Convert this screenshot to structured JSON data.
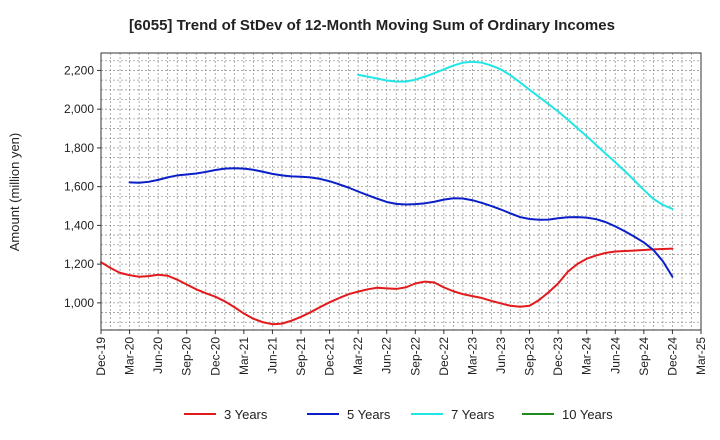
{
  "chart_data": {
    "type": "line",
    "title": "[6055]  Trend of StDev of 12-Month Moving Sum of Ordinary Incomes",
    "xlabel": "",
    "ylabel": "Amount (million yen)",
    "ylim": [
      860,
      2290
    ],
    "y_ticks": [
      1000,
      1200,
      1400,
      1600,
      1800,
      2000,
      2200
    ],
    "y_tick_labels": [
      "1,000",
      "1,200",
      "1,400",
      "1,600",
      "1,800",
      "2,000",
      "2,200"
    ],
    "x_tick_labels": [
      "Dec-19",
      "Mar-20",
      "Jun-20",
      "Sep-20",
      "Dec-20",
      "Mar-21",
      "Jun-21",
      "Sep-21",
      "Dec-21",
      "Mar-22",
      "Jun-22",
      "Sep-22",
      "Dec-22",
      "Mar-23",
      "Jun-23",
      "Sep-23",
      "Dec-23",
      "Mar-24",
      "Jun-24",
      "Sep-24",
      "Dec-24",
      "Mar-25"
    ],
    "grid": true,
    "legend_position": "bottom",
    "series": [
      {
        "name": "3 Years",
        "color": "#e31a1c",
        "points": [
          [
            "Dec-19",
            1210
          ],
          [
            "Jan-20",
            1180
          ],
          [
            "Feb-20",
            1155
          ],
          [
            "Mar-20",
            1143
          ],
          [
            "Apr-20",
            1135
          ],
          [
            "May-20",
            1138
          ],
          [
            "Jun-20",
            1145
          ],
          [
            "Jul-20",
            1140
          ],
          [
            "Aug-20",
            1120
          ],
          [
            "Sep-20",
            1095
          ],
          [
            "Oct-20",
            1070
          ],
          [
            "Nov-20",
            1050
          ],
          [
            "Dec-20",
            1032
          ],
          [
            "Jan-21",
            1008
          ],
          [
            "Feb-21",
            978
          ],
          [
            "Mar-21",
            945
          ],
          [
            "Apr-21",
            918
          ],
          [
            "May-21",
            900
          ],
          [
            "Jun-21",
            890
          ],
          [
            "Jul-21",
            893
          ],
          [
            "Aug-21",
            908
          ],
          [
            "Sep-21",
            928
          ],
          [
            "Oct-21",
            952
          ],
          [
            "Nov-21",
            978
          ],
          [
            "Dec-21",
            1003
          ],
          [
            "Jan-22",
            1025
          ],
          [
            "Feb-22",
            1045
          ],
          [
            "Mar-22",
            1058
          ],
          [
            "Apr-22",
            1070
          ],
          [
            "May-22",
            1078
          ],
          [
            "Jun-22",
            1075
          ],
          [
            "Jul-22",
            1072
          ],
          [
            "Aug-22",
            1080
          ],
          [
            "Sep-22",
            1100
          ],
          [
            "Oct-22",
            1110
          ],
          [
            "Nov-22",
            1105
          ],
          [
            "Dec-22",
            1080
          ],
          [
            "Jan-23",
            1060
          ],
          [
            "Feb-23",
            1045
          ],
          [
            "Mar-23",
            1035
          ],
          [
            "Apr-23",
            1025
          ],
          [
            "May-23",
            1010
          ],
          [
            "Jun-23",
            997
          ],
          [
            "Jul-23",
            985
          ],
          [
            "Aug-23",
            980
          ],
          [
            "Sep-23",
            985
          ],
          [
            "Oct-23",
            1015
          ],
          [
            "Nov-23",
            1055
          ],
          [
            "Dec-23",
            1100
          ],
          [
            "Jan-24",
            1160
          ],
          [
            "Feb-24",
            1200
          ],
          [
            "Mar-24",
            1228
          ],
          [
            "Apr-24",
            1245
          ],
          [
            "May-24",
            1258
          ],
          [
            "Jun-24",
            1265
          ],
          [
            "Jul-24",
            1268
          ],
          [
            "Aug-24",
            1270
          ],
          [
            "Sep-24",
            1273
          ],
          [
            "Oct-24",
            1276
          ],
          [
            "Nov-24",
            1278
          ],
          [
            "Dec-24",
            1280
          ]
        ]
      },
      {
        "name": "5 Years",
        "color": "#0a1fc8",
        "points": [
          [
            "Mar-20",
            1622
          ],
          [
            "Apr-20",
            1620
          ],
          [
            "May-20",
            1625
          ],
          [
            "Jun-20",
            1635
          ],
          [
            "Jul-20",
            1648
          ],
          [
            "Aug-20",
            1658
          ],
          [
            "Sep-20",
            1663
          ],
          [
            "Oct-20",
            1668
          ],
          [
            "Nov-20",
            1676
          ],
          [
            "Dec-20",
            1686
          ],
          [
            "Jan-21",
            1693
          ],
          [
            "Feb-21",
            1695
          ],
          [
            "Mar-21",
            1693
          ],
          [
            "Apr-21",
            1687
          ],
          [
            "May-21",
            1677
          ],
          [
            "Jun-21",
            1666
          ],
          [
            "Jul-21",
            1658
          ],
          [
            "Aug-21",
            1653
          ],
          [
            "Sep-21",
            1651
          ],
          [
            "Oct-21",
            1648
          ],
          [
            "Nov-21",
            1640
          ],
          [
            "Dec-21",
            1628
          ],
          [
            "Jan-22",
            1612
          ],
          [
            "Feb-22",
            1595
          ],
          [
            "Mar-22",
            1575
          ],
          [
            "Apr-22",
            1556
          ],
          [
            "May-22",
            1538
          ],
          [
            "Jun-22",
            1521
          ],
          [
            "Jul-22",
            1511
          ],
          [
            "Aug-22",
            1508
          ],
          [
            "Sep-22",
            1510
          ],
          [
            "Oct-22",
            1514
          ],
          [
            "Nov-22",
            1522
          ],
          [
            "Dec-22",
            1533
          ],
          [
            "Jan-23",
            1540
          ],
          [
            "Feb-23",
            1539
          ],
          [
            "Mar-23",
            1530
          ],
          [
            "Apr-23",
            1516
          ],
          [
            "May-23",
            1500
          ],
          [
            "Jun-23",
            1482
          ],
          [
            "Jul-23",
            1462
          ],
          [
            "Aug-23",
            1443
          ],
          [
            "Sep-23",
            1433
          ],
          [
            "Oct-23",
            1429
          ],
          [
            "Nov-23",
            1430
          ],
          [
            "Dec-23",
            1437
          ],
          [
            "Jan-24",
            1442
          ],
          [
            "Feb-24",
            1443
          ],
          [
            "Mar-24",
            1440
          ],
          [
            "Apr-24",
            1432
          ],
          [
            "May-24",
            1417
          ],
          [
            "Jun-24",
            1395
          ],
          [
            "Jul-24",
            1370
          ],
          [
            "Aug-24",
            1342
          ],
          [
            "Sep-24",
            1312
          ],
          [
            "Oct-24",
            1273
          ],
          [
            "Nov-24",
            1215
          ],
          [
            "Dec-24",
            1135
          ]
        ]
      },
      {
        "name": "7 Years",
        "color": "#22e5e5",
        "points": [
          [
            "Mar-22",
            2177
          ],
          [
            "Apr-22",
            2168
          ],
          [
            "May-22",
            2158
          ],
          [
            "Jun-22",
            2148
          ],
          [
            "Jul-22",
            2142
          ],
          [
            "Aug-22",
            2143
          ],
          [
            "Sep-22",
            2152
          ],
          [
            "Oct-22",
            2168
          ],
          [
            "Nov-22",
            2186
          ],
          [
            "Dec-22",
            2206
          ],
          [
            "Jan-23",
            2225
          ],
          [
            "Feb-23",
            2240
          ],
          [
            "Mar-23",
            2245
          ],
          [
            "Apr-23",
            2240
          ],
          [
            "May-23",
            2225
          ],
          [
            "Jun-23",
            2205
          ],
          [
            "Jul-23",
            2175
          ],
          [
            "Aug-23",
            2138
          ],
          [
            "Sep-23",
            2100
          ],
          [
            "Oct-23",
            2063
          ],
          [
            "Nov-23",
            2026
          ],
          [
            "Dec-23",
            1988
          ],
          [
            "Jan-24",
            1947
          ],
          [
            "Feb-24",
            1903
          ],
          [
            "Mar-24",
            1860
          ],
          [
            "Apr-24",
            1815
          ],
          [
            "May-24",
            1770
          ],
          [
            "Jun-24",
            1726
          ],
          [
            "Jul-24",
            1680
          ],
          [
            "Aug-24",
            1632
          ],
          [
            "Sep-24",
            1583
          ],
          [
            "Oct-24",
            1537
          ],
          [
            "Nov-24",
            1506
          ],
          [
            "Dec-24",
            1485
          ]
        ]
      },
      {
        "name": "10 Years",
        "color": "#1f8a1f",
        "points": []
      }
    ]
  }
}
